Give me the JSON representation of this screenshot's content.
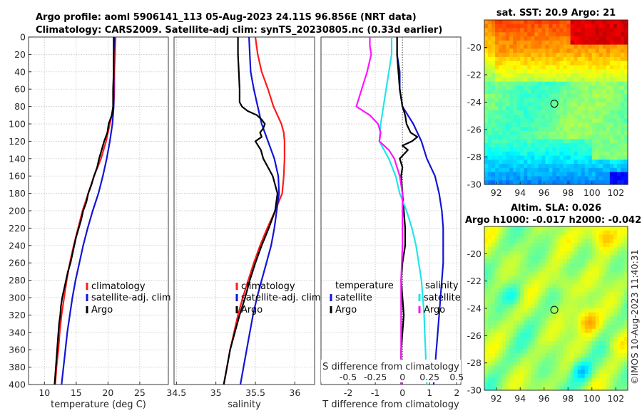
{
  "header": {
    "line1": "Argo profile: aoml 5906141_113 05-Aug-2023 24.11S 96.856E (NRT data)",
    "line2": "Climatology: CARS2009. Satellite-adj clim: synTS_20230805.nc (0.33d earlier)"
  },
  "colors": {
    "climatology": "#ff1a1a",
    "satellite": "#1414d6",
    "argo": "#000000",
    "sal_sat": "#22e5ea",
    "sal_argo": "#ff14ff",
    "zero_line": "#444444"
  },
  "chart_data": [
    {
      "type": "line",
      "title": "",
      "xlabel": "temperature (deg C)",
      "ylabel": "depth",
      "xlim": [
        7.5,
        29.5
      ],
      "ylim": [
        400,
        0
      ],
      "xticks": [
        10,
        15,
        20,
        25
      ],
      "xtick_labels": [
        "10",
        "15",
        "20",
        "25"
      ],
      "yticks": [
        0,
        20,
        40,
        60,
        80,
        100,
        120,
        140,
        160,
        180,
        200,
        220,
        240,
        260,
        280,
        300,
        320,
        340,
        360,
        380,
        400
      ],
      "grid": true,
      "legend": {
        "position": "lower-right",
        "entries": [
          "climatology",
          "satellite-adj. clim",
          "Argo"
        ]
      },
      "series": [
        {
          "name": "climatology",
          "color_key": "climatology",
          "depth": [
            0,
            20,
            40,
            60,
            80,
            90,
            100,
            120,
            140,
            160,
            180,
            200,
            220,
            240,
            260,
            280,
            300,
            320,
            340,
            360,
            380,
            400
          ],
          "values": [
            21.2,
            21.1,
            21.0,
            21.0,
            20.9,
            20.6,
            20.3,
            19.7,
            18.9,
            17.8,
            16.9,
            16.0,
            15.3,
            14.6,
            14.0,
            13.5,
            13.1,
            12.7,
            12.4,
            12.2,
            11.9,
            11.7
          ]
        },
        {
          "name": "satellite-adj. clim",
          "color_key": "satellite",
          "depth": [
            0,
            20,
            40,
            60,
            80,
            90,
            100,
            120,
            140,
            160,
            180,
            200,
            220,
            240,
            260,
            280,
            300,
            320,
            340,
            360,
            380,
            400
          ],
          "values": [
            21.0,
            20.9,
            20.9,
            20.9,
            20.9,
            20.8,
            20.7,
            20.3,
            19.8,
            19.2,
            18.5,
            17.6,
            16.8,
            16.1,
            15.5,
            14.9,
            14.4,
            14.0,
            13.6,
            13.3,
            13.0,
            12.7
          ]
        },
        {
          "name": "Argo",
          "color_key": "argo",
          "depth": [
            0,
            20,
            40,
            60,
            80,
            90,
            100,
            110,
            120,
            130,
            140,
            150,
            160,
            170,
            180,
            190,
            200,
            210,
            220,
            230,
            240,
            250,
            260,
            270,
            280,
            290,
            300,
            310,
            320,
            330,
            340,
            350,
            360,
            370,
            380,
            390,
            400
          ],
          "values": [
            20.9,
            20.9,
            20.9,
            20.8,
            20.8,
            20.6,
            20.1,
            19.9,
            19.4,
            19.0,
            18.6,
            18.3,
            17.8,
            17.4,
            16.9,
            16.6,
            16.1,
            15.8,
            15.4,
            15.0,
            14.7,
            14.4,
            14.1,
            13.7,
            13.4,
            13.1,
            12.8,
            12.6,
            12.5,
            12.3,
            12.2,
            12.1,
            12.0,
            11.9,
            11.8,
            11.7,
            11.6
          ]
        }
      ]
    },
    {
      "type": "line",
      "xlabel": "salinity",
      "ylabel": "",
      "xlim": [
        34.47,
        36.25
      ],
      "ylim": [
        400,
        0
      ],
      "xticks": [
        34.5,
        35,
        35.5,
        36
      ],
      "xtick_labels": [
        "34.5",
        "35",
        "35.5",
        "36"
      ],
      "grid": true,
      "legend": {
        "position": "lower-right",
        "entries": [
          "climatology",
          "satellite-adj. clim",
          "Argo"
        ]
      },
      "series": [
        {
          "name": "climatology",
          "color_key": "climatology",
          "depth": [
            0,
            20,
            40,
            60,
            80,
            100,
            110,
            120,
            140,
            160,
            180,
            200,
            220,
            240,
            260,
            280,
            300,
            320,
            340,
            360,
            380,
            400
          ],
          "values": [
            35.5,
            35.53,
            35.58,
            35.66,
            35.73,
            35.83,
            35.86,
            35.87,
            35.87,
            35.86,
            35.84,
            35.75,
            35.65,
            35.56,
            35.48,
            35.41,
            35.34,
            35.28,
            35.23,
            35.18,
            35.14,
            35.1
          ]
        },
        {
          "name": "satellite-adj. clim",
          "color_key": "satellite",
          "depth": [
            0,
            20,
            40,
            60,
            80,
            100,
            120,
            140,
            160,
            180,
            200,
            220,
            240,
            260,
            280,
            300,
            320,
            340,
            360,
            380,
            400
          ],
          "values": [
            35.42,
            35.43,
            35.44,
            35.48,
            35.53,
            35.58,
            35.66,
            35.74,
            35.79,
            35.8,
            35.77,
            35.74,
            35.7,
            35.64,
            35.58,
            35.52,
            35.47,
            35.43,
            35.39,
            35.35,
            35.31
          ]
        },
        {
          "name": "Argo",
          "color_key": "argo",
          "depth": [
            0,
            20,
            40,
            60,
            75,
            80,
            85,
            90,
            95,
            100,
            105,
            110,
            115,
            120,
            130,
            140,
            150,
            160,
            180,
            200,
            220,
            240,
            260,
            280,
            300,
            320,
            340,
            360,
            380,
            400
          ],
          "values": [
            35.28,
            35.28,
            35.29,
            35.3,
            35.3,
            35.33,
            35.4,
            35.52,
            35.58,
            35.62,
            35.6,
            35.56,
            35.58,
            35.5,
            35.57,
            35.6,
            35.66,
            35.72,
            35.78,
            35.75,
            35.67,
            35.58,
            35.5,
            35.43,
            35.37,
            35.3,
            35.24,
            35.18,
            35.14,
            35.1
          ]
        }
      ]
    },
    {
      "type": "line",
      "xlabel": "T difference from climatology",
      "xlabel_top": "S difference from climatology",
      "ylabel": "",
      "xlim": [
        -3.0,
        2.15
      ],
      "ylim": [
        400,
        0
      ],
      "xticks": [
        -2,
        -1,
        0,
        1,
        2
      ],
      "xtick_labels": [
        "-2",
        "-1",
        "0",
        "1",
        "2"
      ],
      "s_ticks_at_T": [
        -2,
        -1,
        0,
        1,
        2
      ],
      "s_tick_labels": [
        "-0.5",
        "-0.25",
        "0",
        "0.25",
        "0.5"
      ],
      "grid": true,
      "legend_left": {
        "heading": "temperature",
        "entries": [
          "satellite",
          "Argo"
        ]
      },
      "legend_right": {
        "heading": "salinity",
        "entries": [
          "satellite",
          "Argo"
        ]
      },
      "series": [
        {
          "name": "T satellite",
          "color_key": "satellite",
          "depth": [
            0,
            20,
            40,
            60,
            80,
            90,
            100,
            120,
            140,
            160,
            180,
            200,
            220,
            240,
            260,
            280,
            300,
            320,
            340,
            360,
            380,
            400
          ],
          "values": [
            -0.2,
            -0.2,
            -0.1,
            -0.1,
            0.0,
            0.2,
            0.4,
            0.7,
            0.9,
            1.2,
            1.35,
            1.45,
            1.5,
            1.5,
            1.5,
            1.45,
            1.4,
            1.35,
            1.3,
            1.25,
            1.2,
            1.15
          ]
        },
        {
          "name": "T Argo",
          "color_key": "argo",
          "depth": [
            0,
            20,
            40,
            60,
            80,
            90,
            100,
            110,
            115,
            120,
            125,
            130,
            140,
            150,
            160,
            180,
            200,
            220,
            240,
            260,
            280,
            300,
            320,
            340,
            360,
            380,
            400
          ],
          "values": [
            -0.2,
            -0.2,
            -0.15,
            -0.1,
            0.0,
            0.1,
            0.15,
            0.3,
            0.55,
            0.35,
            0.0,
            0.2,
            -0.1,
            0.0,
            -0.05,
            0.0,
            0.05,
            0.1,
            0.1,
            0.0,
            -0.05,
            0.0,
            0.05,
            0.0,
            -0.05,
            -0.05,
            -0.05
          ]
        },
        {
          "name": "S satellite",
          "color_key": "sal_sat",
          "depth": [
            0,
            20,
            40,
            60,
            80,
            100,
            120,
            140,
            160,
            180,
            200,
            220,
            240,
            260,
            280,
            300,
            320,
            340,
            360,
            380,
            400
          ],
          "values": [
            -0.4,
            -0.4,
            -0.5,
            -0.6,
            -0.7,
            -0.8,
            -0.85,
            -0.5,
            -0.25,
            -0.1,
            0.15,
            0.35,
            0.5,
            0.6,
            0.7,
            0.75,
            0.8,
            0.82,
            0.85,
            0.87,
            0.9
          ]
        },
        {
          "name": "S Argo",
          "color_key": "sal_argo",
          "depth": [
            0,
            10,
            20,
            40,
            60,
            70,
            80,
            90,
            100,
            110,
            120,
            130,
            140,
            150,
            160,
            170,
            180,
            200,
            240,
            280,
            320,
            360,
            400
          ],
          "values": [
            -1.2,
            -1.2,
            -1.15,
            -1.3,
            -1.5,
            -1.6,
            -1.7,
            -1.2,
            -0.9,
            -0.8,
            -0.85,
            -0.5,
            -0.3,
            -0.2,
            -0.1,
            -0.05,
            0.0,
            0.0,
            0.0,
            -0.05,
            -0.05,
            -0.05,
            -0.05
          ]
        }
      ]
    },
    {
      "type": "heatmap",
      "title": "sat. SST: 20.9 Argo: 21",
      "xlim": [
        91,
        103
      ],
      "ylim": [
        -30,
        -18
      ],
      "xticks": [
        92,
        94,
        96,
        98,
        100,
        102
      ],
      "xtick_labels": [
        "92",
        "94",
        "96",
        "98",
        "100",
        "102"
      ],
      "yticks": [
        -20,
        -22,
        -24,
        -26,
        -28,
        -30
      ],
      "ytick_labels": [
        "-20",
        "-22",
        "-24",
        "-26",
        "-28",
        "-30"
      ],
      "marker": {
        "lon": 96.856,
        "lat": -24.11
      }
    },
    {
      "type": "heatmap",
      "title": "Altim. SLA: 0.026",
      "subtitle": "Argo h1000: -0.017 h2000: -0.042",
      "xlim": [
        91,
        103
      ],
      "ylim": [
        -30,
        -18
      ],
      "xticks": [
        92,
        94,
        96,
        98,
        100,
        102
      ],
      "xtick_labels": [
        "92",
        "94",
        "96",
        "98",
        "100",
        "102"
      ],
      "yticks": [
        -20,
        -22,
        -24,
        -26,
        -28,
        -30
      ],
      "ytick_labels": [
        "-20",
        "-22",
        "-24",
        "-26",
        "-28",
        "-30"
      ],
      "marker": {
        "lon": 96.856,
        "lat": -24.11
      }
    }
  ],
  "legend_labels": {
    "climatology": "climatology",
    "satellite_adj": "satellite-adj. clim",
    "argo": "Argo",
    "temperature": "temperature",
    "salinity": "salinity",
    "satellite": "satellite"
  },
  "watermark": "©IMOS 10-Aug-2023 11:40:31"
}
